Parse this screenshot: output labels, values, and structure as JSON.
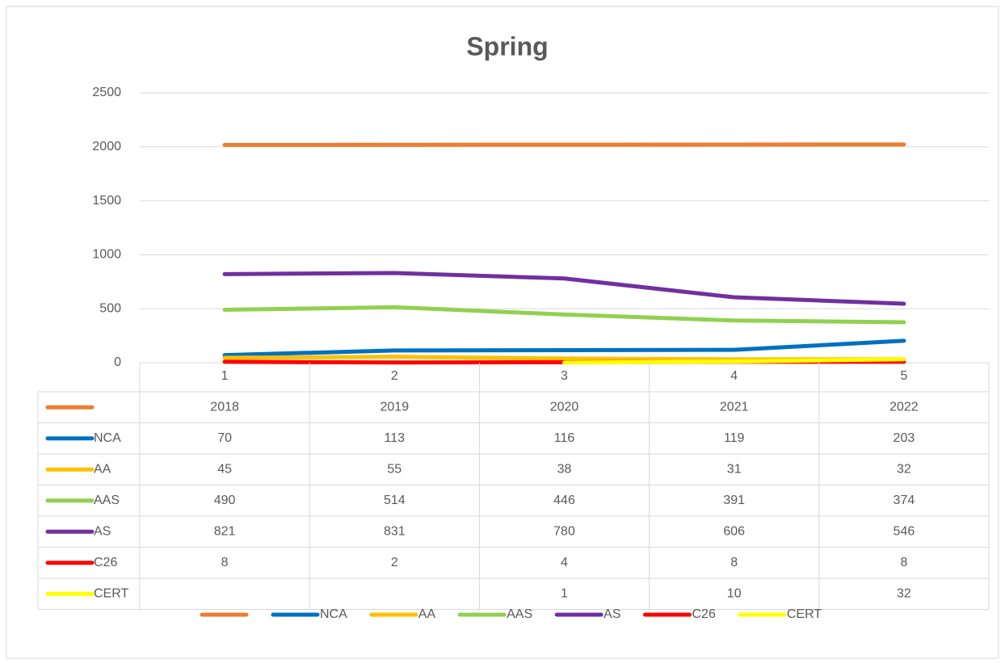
{
  "chart_data": {
    "type": "line",
    "title": "Spring",
    "categories": [
      "1",
      "2",
      "3",
      "4",
      "5"
    ],
    "series": [
      {
        "color": "#ED7D31",
        "values": [
          2018,
          2019,
          2020,
          2021,
          2022
        ]
      },
      {
        "name": "NCA",
        "color": "#0070C0",
        "values": [
          70,
          113,
          116,
          119,
          203
        ]
      },
      {
        "name": "AA",
        "color": "#FFC000",
        "values": [
          45,
          55,
          38,
          31,
          32
        ]
      },
      {
        "name": "AAS",
        "color": "#92D050",
        "values": [
          490,
          514,
          446,
          391,
          374
        ]
      },
      {
        "name": "AS",
        "color": "#7030A0",
        "values": [
          821,
          831,
          780,
          606,
          546
        ]
      },
      {
        "name": "C26",
        "color": "#FF0000",
        "values": [
          8,
          2,
          4,
          8,
          8
        ]
      },
      {
        "name": "CERT",
        "color": "#FFFF00",
        "values": [
          null,
          null,
          1,
          10,
          32
        ]
      }
    ],
    "ylim": [
      0,
      2500
    ],
    "yticks": [
      0,
      500,
      1000,
      1500,
      2000,
      2500
    ],
    "grid": true,
    "legend": "bottom",
    "data_table": true
  }
}
